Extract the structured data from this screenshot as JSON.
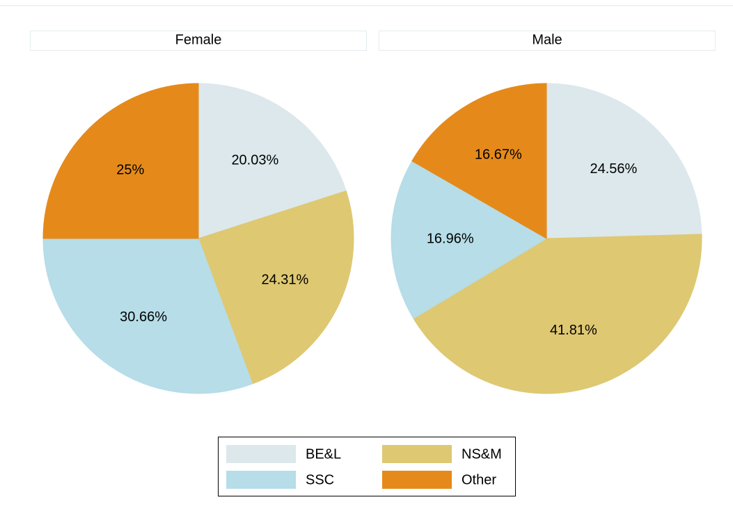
{
  "chart_data": [
    {
      "type": "pie",
      "title": "Female",
      "values": [
        20.03,
        24.31,
        30.66,
        25
      ],
      "value_labels": [
        "20.03%",
        "24.31%",
        "30.66%",
        "25%"
      ]
    },
    {
      "type": "pie",
      "title": "Male",
      "values": [
        24.56,
        41.81,
        16.96,
        16.67
      ],
      "value_labels": [
        "24.56%",
        "41.81%",
        "16.96%",
        "16.67%"
      ]
    }
  ],
  "legend": {
    "categories": [
      "BE&L",
      "NS&M",
      "SSC",
      "Other"
    ],
    "colors": [
      "#dce8ec",
      "#dec872",
      "#b6dde8",
      "#e58a1a"
    ]
  }
}
